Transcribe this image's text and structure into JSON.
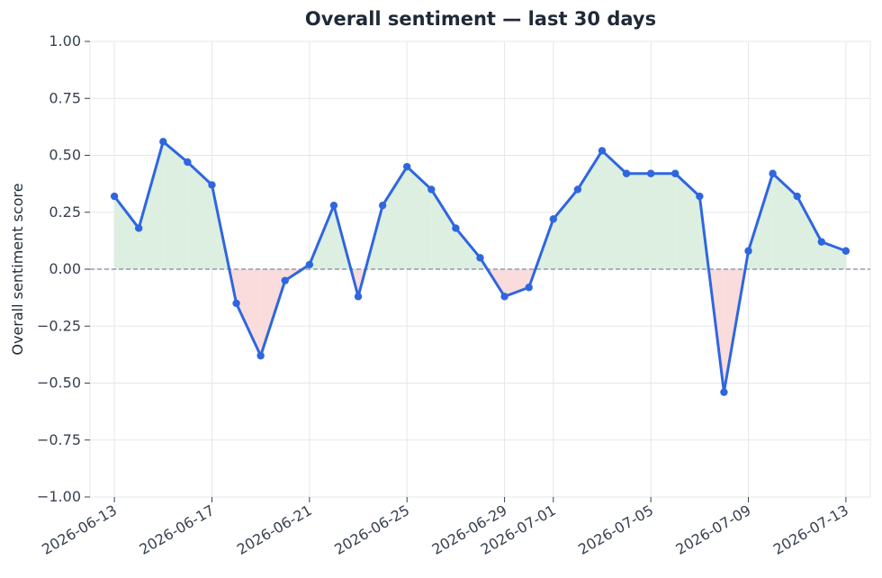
{
  "chart_data": {
    "type": "line",
    "title": "Overall sentiment — last 30 days",
    "xlabel": "",
    "ylabel": "Overall sentiment score",
    "ylim": [
      -1.0,
      1.0
    ],
    "xlim": [
      "2026-06-12",
      "2026-07-14"
    ],
    "yticks": [
      "1.00",
      "0.75",
      "0.50",
      "0.25",
      "0.00",
      "−0.25",
      "−0.50",
      "−0.75",
      "−1.00"
    ],
    "xticks": [
      "2026-06-13",
      "2026-06-17",
      "2026-06-21",
      "2026-06-25",
      "2026-06-29",
      "2026-07-01",
      "2026-07-05",
      "2026-07-09",
      "2026-07-13"
    ],
    "x": [
      "2026-06-13",
      "2026-06-14",
      "2026-06-15",
      "2026-06-16",
      "2026-06-17",
      "2026-06-18",
      "2026-06-19",
      "2026-06-20",
      "2026-06-21",
      "2026-06-22",
      "2026-06-23",
      "2026-06-24",
      "2026-06-25",
      "2026-06-26",
      "2026-06-27",
      "2026-06-28",
      "2026-06-29",
      "2026-06-30",
      "2026-07-01",
      "2026-07-02",
      "2026-07-03",
      "2026-07-04",
      "2026-07-05",
      "2026-07-06",
      "2026-07-07",
      "2026-07-08",
      "2026-07-09",
      "2026-07-10",
      "2026-07-11",
      "2026-07-12",
      "2026-07-13"
    ],
    "values": [
      0.32,
      0.18,
      0.56,
      0.47,
      0.37,
      -0.15,
      -0.38,
      -0.05,
      0.02,
      0.28,
      -0.12,
      0.28,
      0.45,
      0.35,
      0.18,
      0.05,
      -0.12,
      -0.08,
      0.22,
      0.35,
      0.52,
      0.42,
      0.42,
      0.42,
      0.32,
      -0.54,
      0.08,
      0.42,
      0.32,
      0.12,
      0.08
    ],
    "baseline": 0.0,
    "grid": true,
    "colors": {
      "line": "#2f66e0",
      "positive_fill": "#dcefe1",
      "negative_fill": "#fadcdc",
      "baseline": "#7d8ba3",
      "grid": "#e5e7eb"
    }
  }
}
